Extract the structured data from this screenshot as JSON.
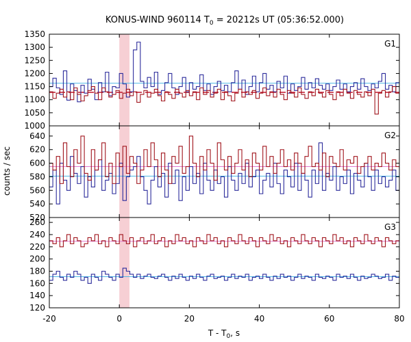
{
  "chart_data": {
    "type": "line",
    "title": "KONUS-WIND 960114 T",
    "title_sub": "0",
    "title_rest": " = 20212s UT (05:36:52.000)",
    "xlabel": "T - T",
    "xlabel_sub": "0",
    "xlabel_rest": ", s",
    "ylabel": "counts / sec",
    "xlim": [
      -20,
      80
    ],
    "x_ticks": [
      "-20",
      "0",
      "20",
      "40",
      "60",
      "80"
    ],
    "x_tick_values": [
      -20,
      0,
      20,
      40,
      60,
      80
    ],
    "bin_width": 1.0,
    "highlight": {
      "x0": 0.0,
      "x1": 2.9,
      "color": "#f6cfd4"
    },
    "colors": {
      "blue": "#2b2b9b",
      "red": "#a0141c",
      "cyan": "#4fb8e6",
      "pink": "#e07bd0",
      "red_dash": "#c0142a"
    },
    "panels": [
      {
        "label": "G1",
        "ylim": [
          1000,
          1350
        ],
        "y_ticks": [
          "1000",
          "1050",
          "1100",
          "1150",
          "1200",
          "1250",
          "1300",
          "1350"
        ],
        "y_tick_values": [
          1000,
          1050,
          1100,
          1150,
          1200,
          1250,
          1300,
          1350
        ],
        "series": [
          {
            "color": "blue",
            "values": [
              1150,
              1182,
              1145,
              1120,
              1210,
              1098,
              1160,
              1135,
              1092,
              1155,
              1125,
              1178,
              1140,
              1100,
              1165,
              1130,
              1205,
              1115,
              1150,
              1145,
              1200,
              1160,
              1110,
              1130,
              1290,
              1320,
              1170,
              1145,
              1185,
              1150,
              1205,
              1120,
              1135,
              1165,
              1200,
              1145,
              1120,
              1150,
              1185,
              1130,
              1165,
              1140,
              1150,
              1195,
              1135,
              1160,
              1120,
              1150,
              1170,
              1135,
              1155,
              1130,
              1165,
              1210,
              1140,
              1175,
              1120,
              1150,
              1190,
              1130,
              1165,
              1200,
              1140,
              1155,
              1130,
              1170,
              1145,
              1190,
              1125,
              1160,
              1135,
              1150,
              1185,
              1140,
              1165,
              1145,
              1180,
              1155,
              1140,
              1160,
              1135,
              1150,
              1175,
              1140,
              1160,
              1130,
              1150,
              1165,
              1140,
              1180,
              1150,
              1135,
              1160,
              1145,
              1170,
              1200,
              1140,
              1155,
              1130,
              1165
            ]
          },
          {
            "color": "red",
            "values": [
              1130,
              1105,
              1125,
              1140,
              1110,
              1130,
              1100,
              1145,
              1120,
              1095,
              1115,
              1135,
              1150,
              1125,
              1100,
              1145,
              1130,
              1110,
              1120,
              1135,
              1105,
              1125,
              1140,
              1115,
              1130,
              1090,
              1120,
              1135,
              1110,
              1125,
              1140,
              1115,
              1095,
              1130,
              1120,
              1105,
              1140,
              1125,
              1110,
              1135,
              1115,
              1130,
              1100,
              1145,
              1120,
              1135,
              1110,
              1125,
              1140,
              1100,
              1130,
              1115,
              1095,
              1125,
              1140,
              1110,
              1130,
              1120,
              1135,
              1105,
              1125,
              1145,
              1115,
              1130,
              1110,
              1140,
              1120,
              1100,
              1135,
              1125,
              1110,
              1145,
              1120,
              1105,
              1130,
              1115,
              1140,
              1125,
              1110,
              1135,
              1120,
              1100,
              1130,
              1115,
              1140,
              1125,
              1105,
              1135,
              1120,
              1110,
              1130,
              1115,
              1140,
              1045,
              1125,
              1135,
              1110,
              1130,
              1150,
              1125
            ]
          }
        ],
        "lines": [
          {
            "color": "cyan",
            "value": 1163,
            "dash": false
          },
          {
            "color": "red_dash",
            "value": 1128,
            "dash": true
          }
        ]
      },
      {
        "label": "G2",
        "ylim": [
          520,
          655
        ],
        "y_ticks": [
          "520",
          "540",
          "560",
          "580",
          "600",
          "620",
          "640"
        ],
        "y_tick_values": [
          520,
          540,
          560,
          580,
          600,
          620,
          640
        ],
        "series": [
          {
            "color": "blue",
            "values": [
              565,
              590,
              540,
              600,
              575,
              560,
              610,
              585,
              570,
              595,
              550,
              580,
              565,
              590,
              605,
              560,
              575,
              585,
              555,
              570,
              600,
              545,
              580,
              590,
              595,
              610,
              580,
              560,
              540,
              575,
              595,
              565,
              585,
              550,
              600,
              570,
              590,
              545,
              580,
              560,
              595,
              570,
              585,
              555,
              600,
              575,
              560,
              590,
              570,
              580,
              550,
              595,
              575,
              560,
              585,
              570,
              600,
              565,
              580,
              590,
              555,
              575,
              585,
              565,
              600,
              570,
              555,
              590,
              580,
              565,
              600,
              560,
              585,
              575,
              550,
              590,
              570,
              630,
              560,
              585,
              575,
              595,
              560,
              580,
              570,
              590,
              555,
              585,
              575,
              565,
              600,
              580,
              560,
              590,
              570,
              580,
              565,
              575,
              590,
              560
            ]
          },
          {
            "color": "red",
            "values": [
              600,
              590,
              610,
              570,
              630,
              595,
              580,
              620,
              600,
              640,
              585,
              575,
              620,
              590,
              605,
              630,
              580,
              600,
              570,
              615,
              595,
              625,
              585,
              610,
              600,
              570,
              590,
              620,
              595,
              630,
              605,
              580,
              615,
              590,
              570,
              610,
              600,
              625,
              585,
              595,
              640,
              600,
              580,
              610,
              590,
              620,
              600,
              575,
              630,
              605,
              590,
              610,
              585,
              600,
              620,
              590,
              605,
              580,
              615,
              600,
              590,
              625,
              595,
              610,
              585,
              600,
              620,
              595,
              605,
              590,
              615,
              600,
              585,
              610,
              625,
              595,
              600,
              590,
              615,
              580,
              610,
              600,
              595,
              620,
              590,
              605,
              600,
              610,
              585,
              595,
              600,
              610,
              590,
              600,
              595,
              615,
              600,
              590,
              605,
              595
            ]
          }
        ],
        "lines": [
          {
            "color": "pink",
            "value": 595,
            "dash": false
          },
          {
            "color": "cyan",
            "value": 581,
            "dash": false
          }
        ]
      },
      {
        "label": "G3",
        "ylim": [
          120,
          268
        ],
        "y_ticks": [
          "120",
          "140",
          "160",
          "180",
          "200",
          "220",
          "240",
          "260"
        ],
        "y_tick_values": [
          120,
          140,
          160,
          180,
          200,
          220,
          240,
          260
        ],
        "series": [
          {
            "color": "blue",
            "values": [
              165,
              175,
              180,
              170,
              165,
              175,
              170,
              180,
              175,
              165,
              170,
              160,
              175,
              170,
              165,
              180,
              175,
              170,
              165,
              175,
              170,
              185,
              180,
              175,
              170,
              175,
              168,
              172,
              175,
              170,
              168,
              172,
              175,
              170,
              165,
              172,
              168,
              175,
              170,
              165,
              172,
              168,
              175,
              170,
              165,
              172,
              175,
              168,
              170,
              172,
              165,
              170,
              175,
              168,
              172,
              170,
              175,
              165,
              170,
              172,
              168,
              175,
              170,
              165,
              172,
              168,
              175,
              170,
              172,
              165,
              170,
              175,
              168,
              172,
              170,
              165,
              175,
              170,
              168,
              172,
              170,
              165,
              175,
              170,
              172,
              168,
              175,
              170,
              165,
              172,
              168,
              170,
              175,
              172,
              168,
              170,
              175,
              165,
              172,
              170
            ]
          },
          {
            "color": "red",
            "values": [
              230,
              225,
              235,
              220,
              230,
              240,
              225,
              235,
              230,
              220,
              225,
              235,
              230,
              240,
              225,
              230,
              220,
              235,
              230,
              225,
              240,
              230,
              225,
              235,
              220,
              230,
              235,
              225,
              230,
              240,
              225,
              230,
              235,
              220,
              230,
              225,
              240,
              230,
              235,
              225,
              230,
              220,
              235,
              230,
              225,
              240,
              230,
              235,
              225,
              230,
              220,
              235,
              230,
              225,
              240,
              230,
              225,
              235,
              230,
              220,
              235,
              230,
              225,
              240,
              230,
              235,
              225,
              230,
              220,
              235,
              230,
              225,
              240,
              230,
              225,
              235,
              230,
              220,
              235,
              230,
              225,
              240,
              230,
              235,
              225,
              230,
              220,
              235,
              230,
              225,
              240,
              230,
              225,
              235,
              230,
              220,
              235,
              230,
              225,
              230
            ]
          }
        ],
        "lines": [
          {
            "color": "pink",
            "value": 229,
            "dash": false
          },
          {
            "color": "cyan",
            "value": 171,
            "dash": false
          }
        ]
      }
    ]
  }
}
